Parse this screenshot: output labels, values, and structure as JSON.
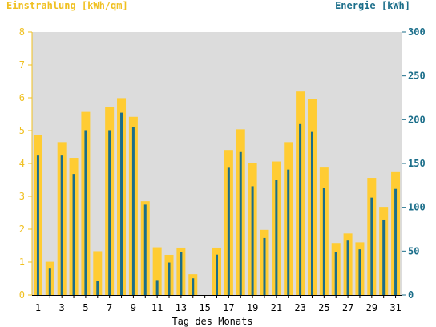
{
  "chart_data": {
    "type": "bar",
    "title_left": "Einstrahlung [kWh/qm]",
    "title_right": "Energie [kWh]",
    "xlabel": "Tag des Monats",
    "categories": [
      1,
      2,
      3,
      4,
      5,
      6,
      7,
      8,
      9,
      10,
      11,
      12,
      13,
      14,
      15,
      16,
      17,
      18,
      19,
      20,
      21,
      22,
      23,
      24,
      25,
      26,
      27,
      28,
      29,
      30,
      31
    ],
    "x_tick_labels": [
      "1",
      "3",
      "5",
      "7",
      "9",
      "11",
      "13",
      "15",
      "17",
      "19",
      "21",
      "23",
      "25",
      "27",
      "29",
      "31"
    ],
    "y_left": {
      "min": 0,
      "max": 8,
      "ticks": [
        "0",
        "1",
        "2",
        "3",
        "4",
        "5",
        "6",
        "7",
        "8"
      ]
    },
    "y_right": {
      "min": 0,
      "max": 300,
      "ticks": [
        "0",
        "50",
        "100",
        "150",
        "200",
        "250",
        "300"
      ]
    },
    "grid": false,
    "series": [
      {
        "axis": "left",
        "color": "#ffcc33",
        "values": [
          4.86,
          1.01,
          4.65,
          4.17,
          5.57,
          1.33,
          5.71,
          5.99,
          5.42,
          2.85,
          1.45,
          1.22,
          1.44,
          0.63,
          0,
          1.44,
          4.41,
          5.04,
          4.02,
          1.98,
          4.06,
          4.65,
          6.19,
          5.96,
          3.9,
          1.58,
          1.87,
          1.6,
          3.56,
          2.68,
          3.76
        ]
      },
      {
        "axis": "right",
        "color": "#1b6e8a",
        "values": [
          159,
          30,
          159,
          138,
          188,
          16,
          188,
          208,
          192,
          103,
          17,
          37,
          49,
          19,
          0,
          46,
          146,
          163,
          124,
          65,
          131,
          143,
          195,
          186,
          122,
          49,
          62,
          52,
          111,
          86,
          121
        ]
      }
    ]
  },
  "colors": {
    "plot_background": "#dcdcdc",
    "left_axis_text": "#f0c020",
    "right_axis_text": "#1b6e8a",
    "axis_line": "#000000"
  }
}
